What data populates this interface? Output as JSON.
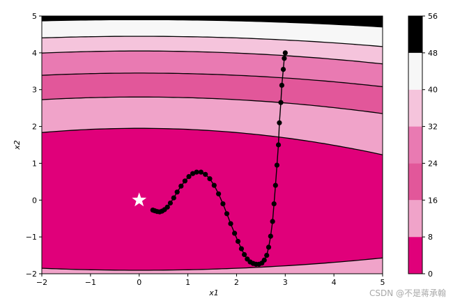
{
  "chart_data": {
    "type": "contour",
    "title": "",
    "xlabel": "x1",
    "ylabel": "x2",
    "xlim": [
      -2,
      5
    ],
    "ylim": [
      -2,
      5
    ],
    "x_ticks": [
      -2,
      -1,
      0,
      1,
      2,
      3,
      4,
      5
    ],
    "y_ticks": [
      -2,
      -1,
      0,
      1,
      2,
      3,
      4,
      5
    ],
    "grid": false,
    "colorbar": {
      "levels": [
        0,
        8,
        16,
        24,
        32,
        40,
        48,
        56
      ],
      "colors": [
        "#e0007a",
        "#f0a3c9",
        "#e2579a",
        "#e97ab2",
        "#f5c4dc",
        "#f7f7f7",
        "#000000"
      ]
    },
    "contour_levels": [
      8,
      16,
      24,
      32,
      40,
      48
    ],
    "contour_description": "approx level lines crossing x2 at x1=0: 8→(1.95,-1.90), 16→2.80, 24→3.45, 32→4.05, 40→4.45, 48→4.88",
    "minimum_marker": {
      "x1": 0,
      "x2": 0,
      "shape": "star",
      "color": "#ffffff"
    },
    "trajectory": {
      "x1": [
        3.0,
        2.98,
        2.96,
        2.93,
        2.91,
        2.88,
        2.86,
        2.83,
        2.8,
        2.77,
        2.74,
        2.7,
        2.66,
        2.62,
        2.57,
        2.52,
        2.46,
        2.4,
        2.34,
        2.28,
        2.22,
        2.16,
        2.1,
        2.03,
        1.96,
        1.88,
        1.8,
        1.72,
        1.63,
        1.54,
        1.45,
        1.36,
        1.27,
        1.18,
        1.1,
        1.02,
        0.94,
        0.86,
        0.78,
        0.71,
        0.64,
        0.58,
        0.52,
        0.47,
        0.42,
        0.37,
        0.32,
        0.28
      ],
      "x2": [
        4.0,
        3.85,
        3.55,
        3.12,
        2.65,
        2.1,
        1.5,
        0.95,
        0.4,
        -0.1,
        -0.58,
        -0.98,
        -1.28,
        -1.5,
        -1.63,
        -1.71,
        -1.74,
        -1.74,
        -1.72,
        -1.68,
        -1.6,
        -1.48,
        -1.32,
        -1.12,
        -0.9,
        -0.64,
        -0.37,
        -0.1,
        0.17,
        0.4,
        0.58,
        0.7,
        0.76,
        0.76,
        0.72,
        0.64,
        0.52,
        0.38,
        0.22,
        0.06,
        -0.08,
        -0.19,
        -0.26,
        -0.3,
        -0.32,
        -0.31,
        -0.29,
        -0.27
      ]
    }
  },
  "watermark": "CSDN @不是蒋承翰"
}
